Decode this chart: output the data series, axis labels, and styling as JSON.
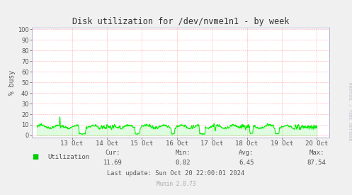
{
  "title": "Disk utilization for /dev/nvme1n1 - by week",
  "ylabel": "% busy",
  "yticks": [
    0,
    10,
    20,
    30,
    40,
    50,
    60,
    70,
    80,
    90,
    100
  ],
  "ylim": [
    -2,
    102
  ],
  "xtick_labels": [
    "13 Oct",
    "14 Oct",
    "15 Oct",
    "16 Oct",
    "17 Oct",
    "18 Oct",
    "19 Oct",
    "20 Oct"
  ],
  "line_color": "#00ee00",
  "bg_color": "#f0f0f0",
  "plot_bg_color": "#ffffff",
  "grid_color": "#ff8888",
  "title_color": "#333333",
  "label_color": "#555555",
  "legend_label": "Utilization",
  "legend_color": "#00cc00",
  "cur_label": "Cur:",
  "cur_val": "11.69",
  "min_label": "Min:",
  "min_val": "0.82",
  "avg_label": "Avg:",
  "avg_val": "6.45",
  "max_label": "Max:",
  "max_val": "87.54",
  "last_update": "Last update: Sun Oct 20 22:00:01 2024",
  "munin_version": "Munin 2.0.73",
  "watermark": "RRDTOOL / TOBI OETIKER"
}
